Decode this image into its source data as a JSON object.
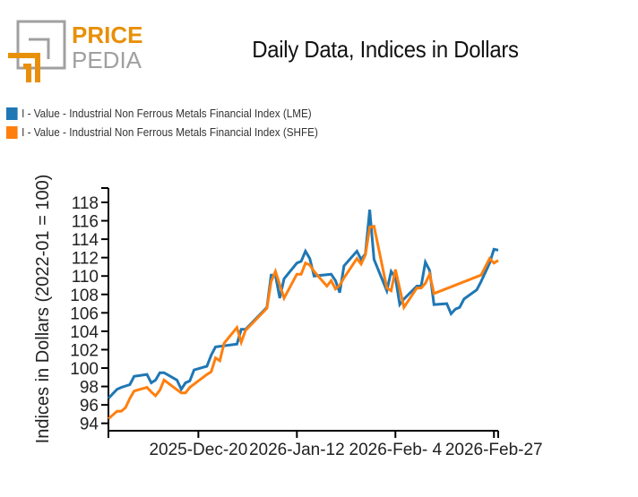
{
  "logo": {
    "line1": "PRICE",
    "line2": "PEDIA",
    "colors": {
      "orange": "#E8900A",
      "gray": "#A0A0A0"
    }
  },
  "chart_data": {
    "type": "line",
    "title": "Daily Data, Indices in Dollars",
    "xlabel": "",
    "ylabel": "Indices in Dollars (2022-01 = 100)",
    "xlim": [
      "2025-11-29",
      "2026-02-28"
    ],
    "ylim": [
      93.2,
      119.3
    ],
    "x_ticks": [
      {
        "date": "2025-11-29",
        "label": ""
      },
      {
        "date": "2025-12-20",
        "label": "2025-Dec-20"
      },
      {
        "date": "2026-01-12",
        "label": "2026-Jan-12"
      },
      {
        "date": "2026-02-04",
        "label": "2026-Feb- 4"
      },
      {
        "date": "2026-02-27",
        "label": "2026-Feb-27"
      }
    ],
    "y_ticks": [
      94,
      96,
      98,
      100,
      102,
      104,
      106,
      108,
      110,
      112,
      114,
      116,
      118
    ],
    "grid": false,
    "legend_position": "top-left",
    "series": [
      {
        "name": "I - Value - Industrial Non Ferrous Metals Financial Index (LME)",
        "color": "#1F77B4",
        "points": [
          [
            "2025-11-29",
            96.7
          ],
          [
            "2025-12-01",
            97.7
          ],
          [
            "2025-12-02",
            97.9
          ],
          [
            "2025-12-04",
            98.2
          ],
          [
            "2025-12-05",
            99.1
          ],
          [
            "2025-12-08",
            99.3
          ],
          [
            "2025-12-09",
            98.4
          ],
          [
            "2025-12-10",
            98.7
          ],
          [
            "2025-12-11",
            99.5
          ],
          [
            "2025-12-12",
            99.5
          ],
          [
            "2025-12-15",
            98.7
          ],
          [
            "2025-12-16",
            97.7
          ],
          [
            "2025-12-17",
            98.4
          ],
          [
            "2025-12-18",
            98.6
          ],
          [
            "2025-12-19",
            99.8
          ],
          [
            "2025-12-22",
            100.2
          ],
          [
            "2025-12-23",
            101.4
          ],
          [
            "2025-12-24",
            102.3
          ],
          [
            "2025-12-29",
            102.6
          ],
          [
            "2025-12-30",
            104.2
          ],
          [
            "2025-12-31",
            104.2
          ],
          [
            "2026-01-05",
            106.6
          ],
          [
            "2026-01-06",
            110.1
          ],
          [
            "2026-01-07",
            110.1
          ],
          [
            "2026-01-08",
            107.6
          ],
          [
            "2026-01-09",
            109.7
          ],
          [
            "2026-01-12",
            111.4
          ],
          [
            "2026-01-13",
            111.6
          ],
          [
            "2026-01-14",
            112.7
          ],
          [
            "2026-01-15",
            111.9
          ],
          [
            "2026-01-16",
            110.0
          ],
          [
            "2026-01-20",
            110.2
          ],
          [
            "2026-01-21",
            109.5
          ],
          [
            "2026-01-22",
            108.2
          ],
          [
            "2026-01-23",
            111.1
          ],
          [
            "2026-01-26",
            112.7
          ],
          [
            "2026-01-27",
            111.8
          ],
          [
            "2026-01-28",
            112.4
          ],
          [
            "2026-01-29",
            117.2
          ],
          [
            "2026-01-30",
            111.8
          ],
          [
            "2026-02-02",
            108.4
          ],
          [
            "2026-02-03",
            110.5
          ],
          [
            "2026-02-04",
            109.8
          ],
          [
            "2026-02-05",
            106.9
          ],
          [
            "2026-02-06",
            107.5
          ],
          [
            "2026-02-09",
            108.9
          ],
          [
            "2026-02-10",
            108.9
          ],
          [
            "2026-02-11",
            111.5
          ],
          [
            "2026-02-12",
            110.6
          ],
          [
            "2026-02-13",
            106.9
          ],
          [
            "2026-02-16",
            107.0
          ],
          [
            "2026-02-17",
            105.9
          ],
          [
            "2026-02-18",
            106.4
          ],
          [
            "2026-02-19",
            106.6
          ],
          [
            "2026-02-20",
            107.5
          ],
          [
            "2026-02-23",
            108.5
          ],
          [
            "2026-02-24",
            109.4
          ],
          [
            "2026-02-26",
            111.4
          ],
          [
            "2026-02-27",
            112.9
          ],
          [
            "2026-02-28",
            112.8
          ]
        ]
      },
      {
        "name": "I - Value - Industrial Non Ferrous Metals Financial Index (SHFE)",
        "color": "#FF7F0E",
        "points": [
          [
            "2025-11-29",
            94.5
          ],
          [
            "2025-12-01",
            95.3
          ],
          [
            "2025-12-02",
            95.3
          ],
          [
            "2025-12-03",
            95.7
          ],
          [
            "2025-12-04",
            96.7
          ],
          [
            "2025-12-05",
            97.5
          ],
          [
            "2025-12-08",
            97.9
          ],
          [
            "2025-12-09",
            97.4
          ],
          [
            "2025-12-10",
            97.0
          ],
          [
            "2025-12-11",
            97.6
          ],
          [
            "2025-12-12",
            98.7
          ],
          [
            "2025-12-16",
            97.3
          ],
          [
            "2025-12-17",
            97.3
          ],
          [
            "2025-12-18",
            97.9
          ],
          [
            "2025-12-22",
            99.3
          ],
          [
            "2025-12-23",
            99.6
          ],
          [
            "2025-12-24",
            101.1
          ],
          [
            "2025-12-25",
            100.8
          ],
          [
            "2025-12-26",
            102.7
          ],
          [
            "2025-12-29",
            104.4
          ],
          [
            "2025-12-30",
            102.8
          ],
          [
            "2025-12-31",
            104.1
          ],
          [
            "2026-01-05",
            106.5
          ],
          [
            "2026-01-06",
            109.4
          ],
          [
            "2026-01-07",
            110.5
          ],
          [
            "2026-01-09",
            107.6
          ],
          [
            "2026-01-12",
            110.2
          ],
          [
            "2026-01-13",
            110.2
          ],
          [
            "2026-01-14",
            111.4
          ],
          [
            "2026-01-15",
            111.2
          ],
          [
            "2026-01-16",
            110.5
          ],
          [
            "2026-01-19",
            108.9
          ],
          [
            "2026-01-20",
            109.5
          ],
          [
            "2026-01-21",
            108.6
          ],
          [
            "2026-01-22",
            109.0
          ],
          [
            "2026-01-23",
            109.8
          ],
          [
            "2026-01-26",
            111.9
          ],
          [
            "2026-01-27",
            111.3
          ],
          [
            "2026-01-28",
            112.3
          ],
          [
            "2026-01-29",
            115.3
          ],
          [
            "2026-01-30",
            115.4
          ],
          [
            "2026-02-02",
            108.7
          ],
          [
            "2026-02-03",
            108.4
          ],
          [
            "2026-02-04",
            110.7
          ],
          [
            "2026-02-06",
            106.6
          ],
          [
            "2026-02-09",
            108.7
          ],
          [
            "2026-02-10",
            108.7
          ],
          [
            "2026-02-11",
            109.2
          ],
          [
            "2026-02-12",
            110.2
          ],
          [
            "2026-02-13",
            108.1
          ],
          [
            "2026-02-24",
            110.1
          ],
          [
            "2026-02-26",
            111.9
          ],
          [
            "2026-02-27",
            111.4
          ],
          [
            "2026-02-28",
            111.7
          ]
        ]
      }
    ]
  }
}
